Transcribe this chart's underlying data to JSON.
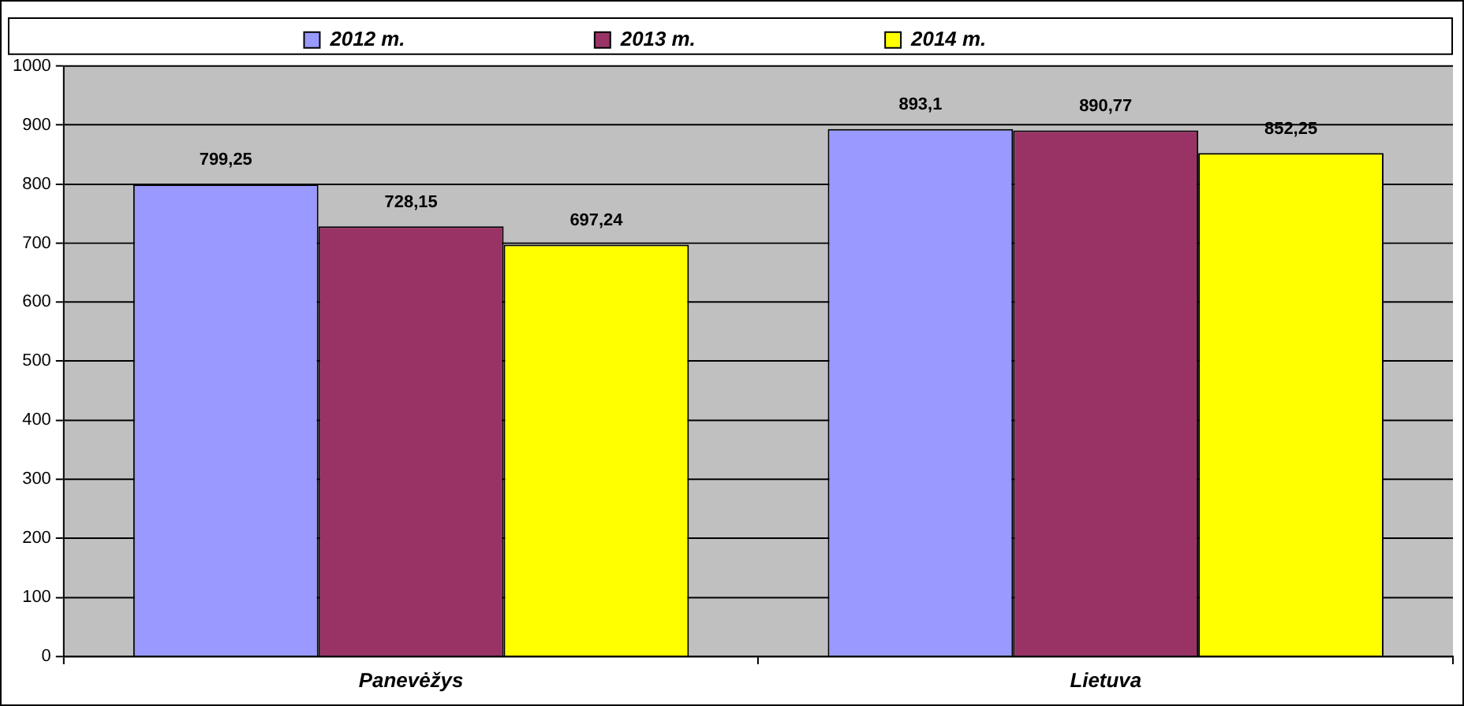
{
  "chart_data": {
    "type": "bar",
    "categories": [
      "Panevėžys",
      "Lietuva"
    ],
    "series": [
      {
        "name": "2012 m.",
        "color": "#9999ff",
        "values": [
          799.25,
          893.1
        ],
        "value_labels": [
          "799,25",
          "893,1"
        ]
      },
      {
        "name": "2013 m.",
        "color": "#993366",
        "values": [
          728.15,
          890.77
        ],
        "value_labels": [
          "728,15",
          "890,77"
        ]
      },
      {
        "name": "2014 m.",
        "color": "#ffff00",
        "values": [
          697.24,
          852.25
        ],
        "value_labels": [
          "697,24",
          "852,25"
        ]
      }
    ],
    "ylim": [
      0,
      1000
    ],
    "yticks": [
      0,
      100,
      200,
      300,
      400,
      500,
      600,
      700,
      800,
      900,
      1000
    ],
    "grid": "y",
    "legend": "top"
  }
}
